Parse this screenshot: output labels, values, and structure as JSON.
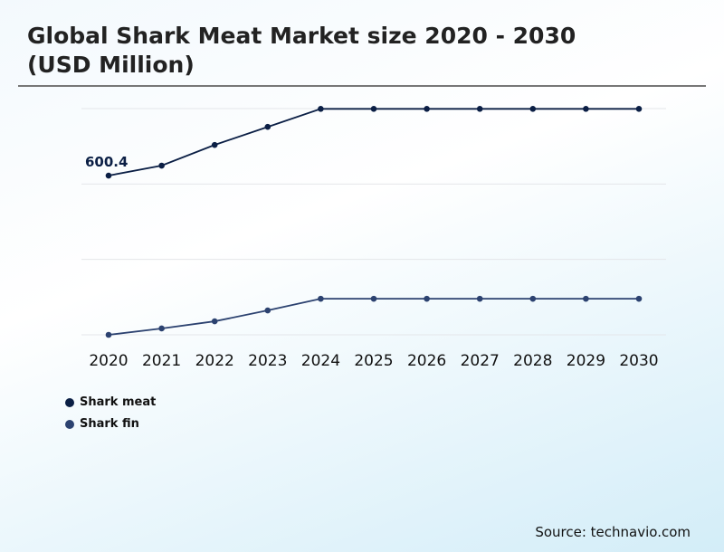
{
  "title": "Global Shark Meat Market size 2020 - 2030 (USD Million)",
  "source": "Source: technavio.com",
  "chart_data": {
    "type": "line",
    "title": "Global Shark Meat Market size 2020 - 2030 (USD Million)",
    "categories": [
      "2020",
      "2021",
      "2022",
      "2023",
      "2024",
      "2025",
      "2026",
      "2027",
      "2028",
      "2029",
      "2030"
    ],
    "ylim": [
      0,
      853
    ],
    "grid": true,
    "legend": "bottom-left",
    "series": [
      {
        "name": "Shark meat",
        "color": "#0b1f45",
        "values": [
          600.4,
          638,
          716,
          784,
          852,
          852,
          852,
          852,
          852,
          852,
          852
        ]
      },
      {
        "name": "Shark fin",
        "color": "#2c4270",
        "values": [
          0,
          24,
          51,
          92,
          136,
          136,
          136,
          136,
          136,
          136,
          136
        ]
      }
    ],
    "annotations": [
      {
        "series": "Shark meat",
        "category": "2020",
        "text": "600.4"
      }
    ]
  }
}
